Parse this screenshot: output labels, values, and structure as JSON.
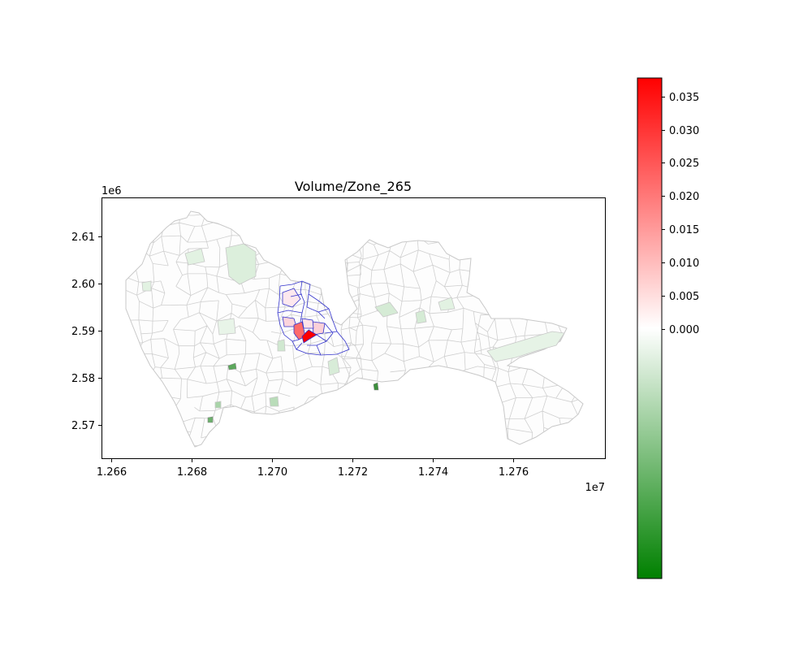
{
  "title": "Volume/Zone_265",
  "x_axis": {
    "exponent_label": "1e7",
    "ticks": [
      "1.266",
      "1.268",
      "1.270",
      "1.272",
      "1.274",
      "1.276"
    ]
  },
  "y_axis": {
    "exponent_label": "1e6",
    "ticks": [
      "2.61",
      "2.60",
      "2.59",
      "2.58",
      "2.57"
    ]
  },
  "colorbar": {
    "ticks": [
      "0.035",
      "0.030",
      "0.025",
      "0.020",
      "0.015",
      "0.010",
      "0.005",
      "0.000"
    ],
    "colors": {
      "max": "#ff0000",
      "mid": "#ffffff",
      "min": "#008000"
    }
  },
  "colors": {
    "zone_border": "#cccccc",
    "highlight_border": "#3333cc"
  }
}
